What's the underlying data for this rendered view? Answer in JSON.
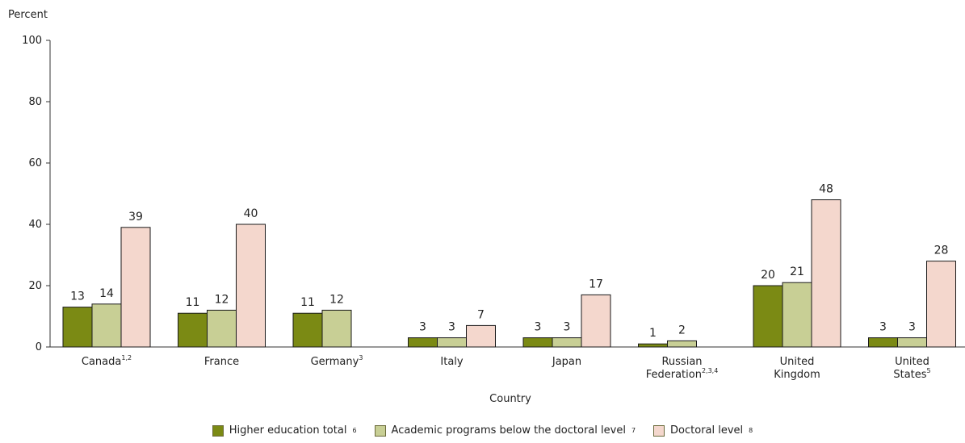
{
  "chart_data": {
    "type": "bar",
    "ylabel": "Percent",
    "xlabel": "Country",
    "ylim": [
      0,
      100
    ],
    "yticks": [
      0,
      20,
      40,
      60,
      80,
      100
    ],
    "grid": false,
    "legend_position": "bottom",
    "categories": [
      {
        "lines": [
          "Canada"
        ],
        "sup": "1,2"
      },
      {
        "lines": [
          "France"
        ],
        "sup": ""
      },
      {
        "lines": [
          "Germany"
        ],
        "sup": "3"
      },
      {
        "lines": [
          "Italy"
        ],
        "sup": ""
      },
      {
        "lines": [
          "Japan"
        ],
        "sup": ""
      },
      {
        "lines": [
          "Russian",
          "Federation"
        ],
        "sup": "2,3,4"
      },
      {
        "lines": [
          "United",
          "Kingdom"
        ],
        "sup": ""
      },
      {
        "lines": [
          "United",
          "States"
        ],
        "sup": "5"
      }
    ],
    "series": [
      {
        "name": "Higher education total",
        "sup": "6",
        "color": "#7b8a14",
        "values": [
          13,
          11,
          11,
          3,
          3,
          1,
          20,
          3
        ]
      },
      {
        "name": "Academic programs below the doctoral level",
        "sup": "7",
        "color": "#c8cf95",
        "values": [
          14,
          12,
          12,
          3,
          3,
          2,
          21,
          3
        ]
      },
      {
        "name": "Doctoral level",
        "sup": "8",
        "color": "#f4d7cd",
        "values": [
          39,
          40,
          null,
          7,
          17,
          null,
          48,
          28
        ]
      }
    ]
  }
}
